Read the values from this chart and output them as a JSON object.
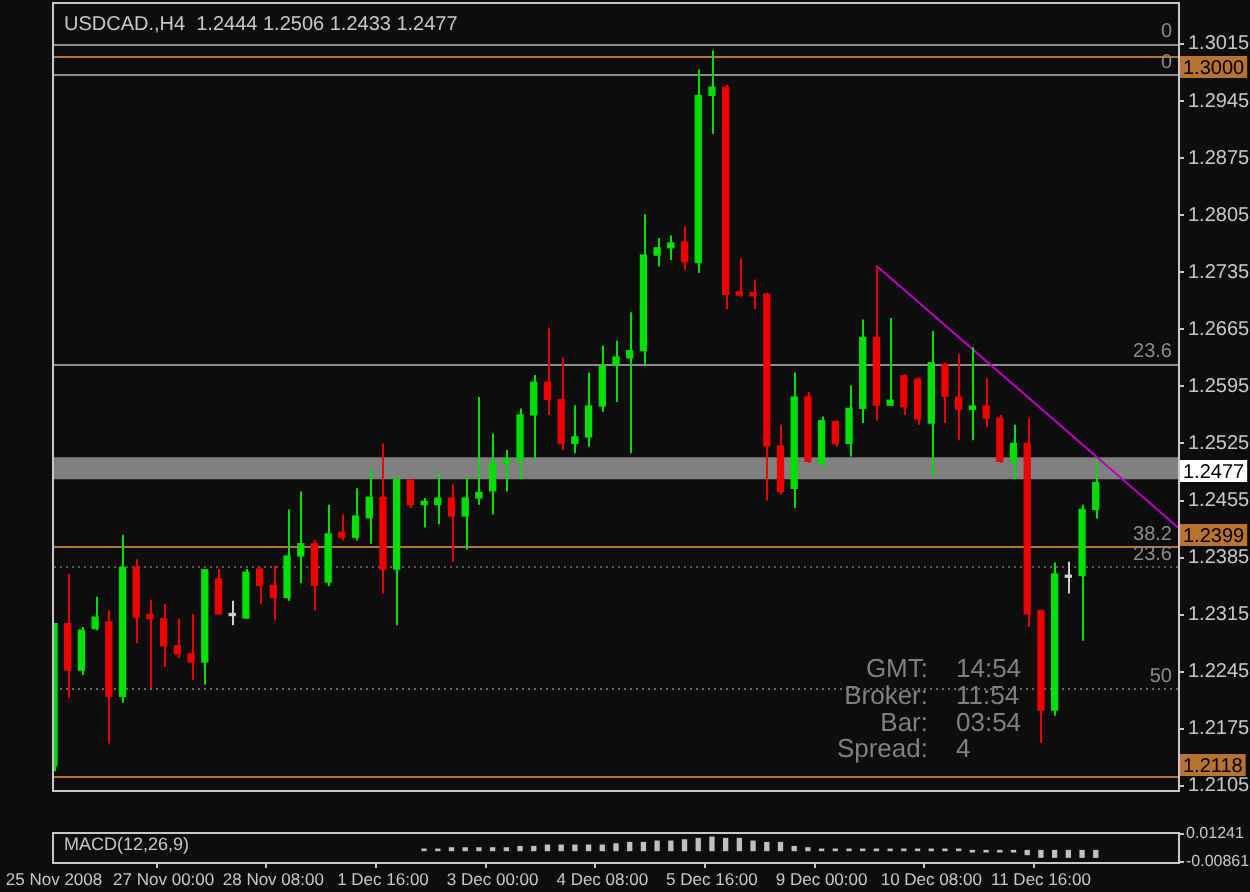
{
  "chart_data": [
    {
      "type": "candlestick",
      "title": "USDCAD.,H4  1.2444 1.2506 1.2433 1.2477",
      "categories": [
        null,
        null,
        null,
        null,
        null,
        null,
        null,
        null,
        null,
        null,
        null,
        null,
        null,
        null,
        null,
        null,
        null,
        null,
        null,
        null,
        null,
        null,
        null,
        null,
        null,
        null,
        null,
        null,
        null,
        null,
        null,
        null,
        null,
        null,
        null,
        null,
        null,
        null,
        null,
        null,
        null,
        null,
        null,
        null,
        null,
        null,
        null,
        null,
        null,
        null,
        null,
        null,
        null,
        null,
        null,
        null,
        null,
        null,
        null,
        null,
        null,
        null,
        null,
        null,
        null,
        null,
        null,
        null,
        null,
        null,
        null,
        null,
        null,
        null,
        null,
        null,
        null,
        null,
        null,
        null,
        null,
        null,
        null
      ],
      "ohlc": [
        [
          1.213,
          1.2304,
          1.2123,
          1.2304
        ],
        [
          1.2304,
          1.2365,
          1.2213,
          1.2247
        ],
        [
          1.2247,
          1.23,
          1.2241,
          1.2296
        ],
        [
          1.2298,
          1.2337,
          1.2296,
          1.2312
        ],
        [
          1.2306,
          1.232,
          1.2157,
          1.2215
        ],
        [
          1.2215,
          1.2413,
          1.2207,
          1.2373
        ],
        [
          1.2373,
          1.2383,
          1.228,
          1.2312
        ],
        [
          1.2315,
          1.2333,
          1.2225,
          1.231
        ],
        [
          1.231,
          1.2328,
          1.2251,
          1.2277
        ],
        [
          1.2277,
          1.231,
          1.2262,
          1.2267
        ],
        [
          1.2267,
          1.2316,
          1.2235,
          1.2257
        ],
        [
          1.2257,
          1.2371,
          1.2229,
          1.237
        ],
        [
          1.2359,
          1.2371,
          1.2316,
          1.2316
        ],
        [
          1.2314,
          1.2332,
          1.2302,
          1.2314
        ],
        [
          1.2311,
          1.2371,
          1.231,
          1.2367
        ],
        [
          1.2371,
          1.2373,
          1.2328,
          1.2351
        ],
        [
          1.2351,
          1.2375,
          1.2308,
          1.2336
        ],
        [
          1.2336,
          1.2444,
          1.2332,
          1.2387
        ],
        [
          1.2387,
          1.2466,
          1.2354,
          1.2402
        ],
        [
          1.2402,
          1.2406,
          1.232,
          1.2351
        ],
        [
          1.2355,
          1.245,
          1.235,
          1.2414
        ],
        [
          1.2416,
          1.2438,
          1.2406,
          1.241
        ],
        [
          1.241,
          1.247,
          1.2406,
          1.2436
        ],
        [
          1.2434,
          1.2493,
          1.2402,
          1.2459
        ],
        [
          1.2459,
          1.2525,
          1.2341,
          1.2371
        ],
        [
          1.2371,
          1.2483,
          1.2302,
          1.2481
        ],
        [
          1.248,
          1.2481,
          1.2446,
          1.245
        ],
        [
          1.245,
          1.2458,
          1.2422,
          1.2454
        ],
        [
          1.245,
          1.2488,
          1.2426,
          1.2458
        ],
        [
          1.2458,
          1.2475,
          1.238,
          1.2436
        ],
        [
          1.2436,
          1.2485,
          1.2395,
          1.2458
        ],
        [
          1.2458,
          1.2582,
          1.245,
          1.2465
        ],
        [
          1.2467,
          1.2537,
          1.2438,
          1.2501
        ],
        [
          1.2501,
          1.2517,
          1.2466,
          1.2505
        ],
        [
          1.2505,
          1.2568,
          1.2481,
          1.256
        ],
        [
          1.256,
          1.2609,
          1.2505,
          1.26
        ],
        [
          1.26,
          1.2667,
          1.256,
          1.2579
        ],
        [
          1.2579,
          1.263,
          1.2517,
          1.2525
        ],
        [
          1.2525,
          1.2572,
          1.2513,
          1.2533
        ],
        [
          1.2533,
          1.2612,
          1.2521,
          1.2571
        ],
        [
          1.2571,
          1.2645,
          1.2564,
          1.262
        ],
        [
          1.2621,
          1.2651,
          1.2576,
          1.2631
        ],
        [
          1.263,
          1.2686,
          1.2513,
          1.2639
        ],
        [
          1.2639,
          1.2806,
          1.2621,
          1.2756
        ],
        [
          1.2756,
          1.2777,
          1.2742,
          1.2765
        ],
        [
          1.2765,
          1.278,
          1.275,
          1.2771
        ],
        [
          1.2772,
          1.2791,
          1.2738,
          1.2748
        ],
        [
          1.2747,
          1.2984,
          1.2734,
          1.2952
        ],
        [
          1.2952,
          1.3007,
          1.2905,
          1.2962
        ],
        [
          1.2962,
          1.2965,
          1.269,
          1.2708
        ],
        [
          1.2711,
          1.2752,
          1.2705,
          1.2707
        ],
        [
          1.271,
          1.2726,
          1.269,
          1.2706
        ],
        [
          1.2708,
          1.271,
          1.2455,
          1.2522
        ],
        [
          1.2522,
          1.2548,
          1.2462,
          1.2466
        ],
        [
          1.247,
          1.2612,
          1.2446,
          1.2582
        ],
        [
          1.2582,
          1.2588,
          1.2501,
          1.2503
        ],
        [
          1.2501,
          1.2558,
          1.2497,
          1.2553
        ],
        [
          1.2552,
          1.2553,
          1.2521,
          1.2525
        ],
        [
          1.2525,
          1.2596,
          1.2509,
          1.2568
        ],
        [
          1.2568,
          1.2677,
          1.255,
          1.2655
        ],
        [
          1.2655,
          1.2743,
          1.2553,
          1.2572
        ],
        [
          1.2572,
          1.2679,
          1.2571,
          1.2578
        ],
        [
          1.2608,
          1.261,
          1.256,
          1.257
        ],
        [
          1.2604,
          1.2606,
          1.2548,
          1.2555
        ],
        [
          1.255,
          1.2663,
          1.2485,
          1.2624
        ],
        [
          1.2622,
          1.2624,
          1.255,
          1.2583
        ],
        [
          1.2582,
          1.2635,
          1.2529,
          1.2567
        ],
        [
          1.2567,
          1.2643,
          1.2529,
          1.2571
        ],
        [
          1.2571,
          1.2605,
          1.2545,
          1.2556
        ],
        [
          1.2556,
          1.256,
          1.2501,
          1.2503
        ],
        [
          1.2503,
          1.2548,
          1.2481,
          1.2525
        ],
        [
          1.2525,
          1.2556,
          1.23,
          1.2316
        ],
        [
          1.232,
          1.2321,
          1.2158,
          1.2198
        ],
        [
          1.2198,
          1.2379,
          1.2191,
          1.2365
        ],
        [
          1.2361,
          1.238,
          1.2341,
          1.2361
        ],
        [
          1.2363,
          1.245,
          1.2283,
          1.2444
        ],
        [
          1.2444,
          1.2506,
          1.2433,
          1.2477
        ],
        null,
        null,
        null,
        null,
        null,
        null
      ],
      "colors": [
        "#00e000",
        "#f00000",
        "#00e000",
        "#00e000",
        "#f00000",
        "#00e000",
        "#f00000",
        "#f00000",
        "#f00000",
        "#f00000",
        "#f00000",
        "#00e000",
        "#f00000",
        "#d0d0d0",
        "#00e000",
        "#f00000",
        "#f00000",
        "#00e000",
        "#00e000",
        "#f00000",
        "#00e000",
        "#f00000",
        "#00e000",
        "#00e000",
        "#f00000",
        "#00e000",
        "#f00000",
        "#00e000",
        "#00e000",
        "#f00000",
        "#00e000",
        "#00e000",
        "#00e000",
        "#00e000",
        "#00e000",
        "#00e000",
        "#f00000",
        "#f00000",
        "#00e000",
        "#00e000",
        "#00e000",
        "#00e000",
        "#00e000",
        "#00e000",
        "#00e000",
        "#00e000",
        "#f00000",
        "#00e000",
        "#00e000",
        "#f00000",
        "#f00000",
        "#f00000",
        "#f00000",
        "#f00000",
        "#00e000",
        "#f00000",
        "#00e000",
        "#f00000",
        "#00e000",
        "#00e000",
        "#f00000",
        "#00e000",
        "#f00000",
        "#f00000",
        "#00e000",
        "#f00000",
        "#f00000",
        "#00e000",
        "#f00000",
        "#f00000",
        "#00e000",
        "#f00000",
        "#f00000",
        "#00e000",
        "#d0d0d0",
        "#00e000",
        "#00e000",
        null,
        null,
        null,
        null,
        null,
        null
      ],
      "series": [
        {
          "type": "line",
          "color": "#c000c0",
          "values": [
            null,
            null,
            null,
            null,
            null,
            null,
            null,
            null,
            null,
            null,
            null,
            null,
            null,
            null,
            null,
            null,
            null,
            null,
            null,
            null,
            null,
            null,
            null,
            null,
            null,
            null,
            null,
            null,
            null,
            null,
            null,
            null,
            null,
            null,
            null,
            null,
            null,
            null,
            null,
            null,
            null,
            null,
            null,
            null,
            null,
            null,
            null,
            null,
            null,
            null,
            null,
            null,
            null,
            null,
            null,
            null,
            null,
            null,
            null,
            null,
            1.2743,
            null,
            null,
            null,
            null,
            null,
            null,
            null,
            null,
            null,
            null,
            null,
            null,
            null,
            null,
            null,
            null,
            null,
            null,
            null,
            null,
            null,
            1.2422
          ]
        }
      ],
      "ylim": [
        1.21,
        1.3064
      ],
      "yticks": [
        1.2105,
        1.2175,
        1.2245,
        1.2315,
        1.2385,
        1.2455,
        1.2525,
        1.2595,
        1.2665,
        1.2735,
        1.2805,
        1.2875,
        1.2945,
        1.3015
      ],
      "tick_labels": "y",
      "ref_lines": [
        {
          "axis": "y",
          "value": 1.3016,
          "color": "#8c8c8c"
        },
        {
          "axis": "y",
          "value": 1.3,
          "label": "1.3000",
          "color": "#b87333"
        },
        {
          "axis": "y",
          "value": 1.2977,
          "color": "#8c8c8c"
        },
        {
          "axis": "y",
          "value": 1.2623,
          "color": "#8c8c8c"
        },
        {
          "axis": "y",
          "value": 1.2399,
          "label": "1.2399",
          "color": "#b87333"
        },
        {
          "axis": "y",
          "value": 1.2374,
          "color": "#5a5a5a",
          "line_style": "dotted"
        },
        {
          "axis": "y",
          "value": 1.2225,
          "color": "#6a6a6a",
          "line_style": "dotted"
        },
        {
          "axis": "y",
          "value": 1.2118,
          "label": "1.2118",
          "color": "#b87333"
        }
      ],
      "bands": [
        {
          "axis": "y",
          "from": 1.2481,
          "to": 1.2508,
          "color": "#808080"
        }
      ],
      "annotations": [
        {
          "text": "0",
          "y": 1.3016
        },
        {
          "text": "0",
          "y": 1.2977
        },
        {
          "text": "23.6",
          "y": 1.2623
        },
        {
          "text": "38.2",
          "y": 1.2399
        },
        {
          "text": "23.6",
          "y": 1.2374
        },
        {
          "text": "50",
          "y": 1.2225
        },
        "1.2477",
        "GMT: 14:54",
        "Broker: 11:54",
        "Bar: 03:54",
        "Spread: 4"
      ]
    },
    {
      "type": "bar",
      "title": "MACD(12,26,9)",
      "categories": [
        "25 Nov 2008",
        null,
        null,
        null,
        null,
        null,
        null,
        null,
        "27 Nov 00:00",
        null,
        null,
        null,
        null,
        null,
        null,
        null,
        "28 Nov 08:00",
        null,
        null,
        null,
        null,
        null,
        null,
        null,
        "1 Dec 16:00",
        null,
        null,
        null,
        null,
        null,
        null,
        null,
        "3 Dec 00:00",
        null,
        null,
        null,
        null,
        null,
        null,
        null,
        "4 Dec 08:00",
        null,
        null,
        null,
        null,
        null,
        null,
        null,
        "5 Dec 16:00",
        null,
        null,
        null,
        null,
        null,
        null,
        null,
        "9 Dec 00:00",
        null,
        null,
        null,
        null,
        null,
        null,
        null,
        "10 Dec 08:00",
        null,
        null,
        null,
        null,
        null,
        null,
        null,
        "11 Dec 16:00",
        null,
        null,
        null,
        null,
        null,
        null,
        null,
        null,
        null,
        null
      ],
      "values": [
        null,
        null,
        null,
        null,
        null,
        null,
        null,
        null,
        null,
        null,
        null,
        null,
        null,
        null,
        null,
        null,
        null,
        null,
        null,
        null,
        null,
        null,
        null,
        null,
        null,
        null,
        null,
        0.001,
        0.001,
        0.002,
        0.002,
        0.002,
        0.002,
        0.002,
        0.003,
        0.003,
        0.004,
        0.004,
        0.004,
        0.004,
        0.004,
        0.005,
        0.006,
        0.006,
        0.007,
        0.007,
        0.008,
        0.009,
        0.01,
        0.009,
        0.009,
        0.007,
        0.006,
        0.006,
        0.003,
        0.002,
        0.001,
        0.001,
        0.001,
        0.001,
        0.001,
        0.001,
        0.001,
        0.001,
        0.001,
        0.001,
        0.001,
        -0.001,
        -0.001,
        -0.001,
        -0.001,
        -0.003,
        -0.005,
        -0.005,
        -0.005,
        -0.005,
        -0.005,
        null,
        null,
        null,
        null,
        null,
        null
      ],
      "color": "#c0c0c0",
      "ylim": [
        -0.00861,
        0.01241
      ],
      "yticks": [
        -0.00861,
        0.01241
      ]
    }
  ]
}
